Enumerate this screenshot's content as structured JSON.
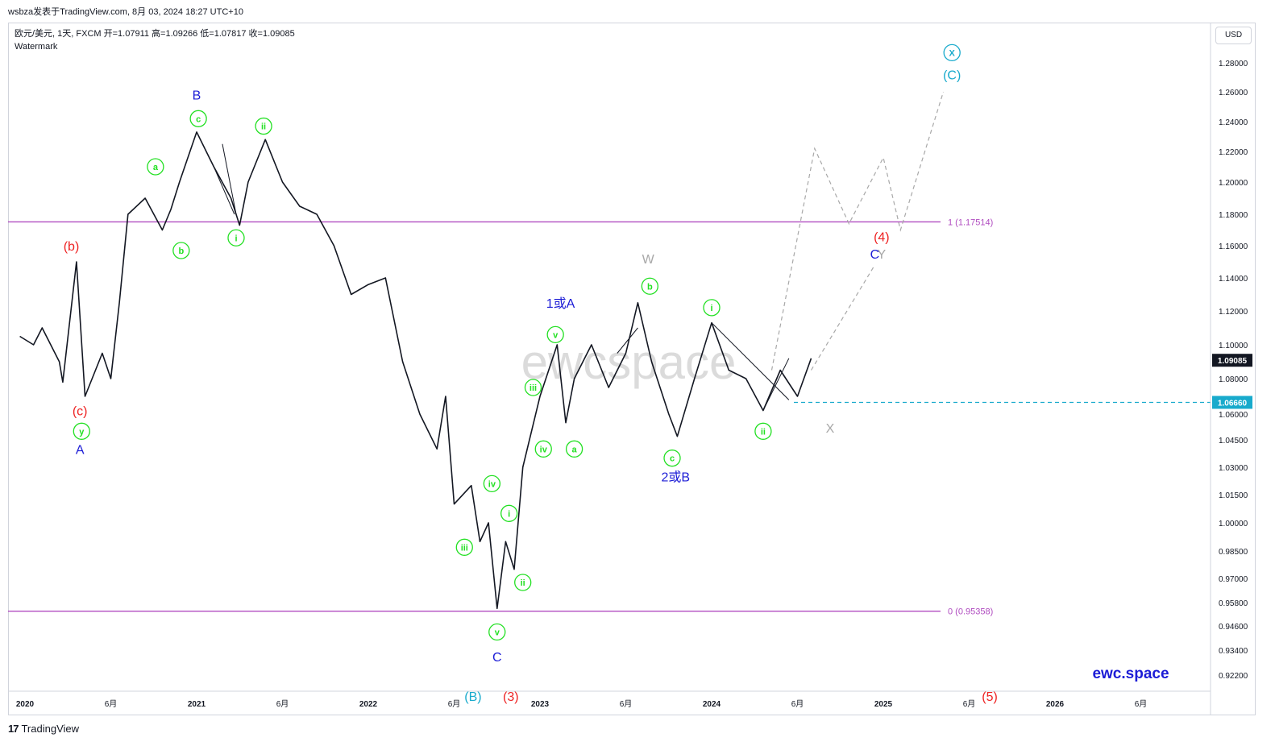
{
  "header": {
    "publish_line": "wsbza发表于TradingView.com,  8月 03, 2024 18:27 UTC+10",
    "symbol_line": "欧元/美元, 1天, FXCM  开=1.07911  高=1.09266  低=1.07817  收=1.09085",
    "watermark_label": "Watermark",
    "currency": "USD",
    "brand": "ewc.space",
    "watermark_text": "ewcspace"
  },
  "footer": {
    "logo": "17",
    "text": "TradingView"
  },
  "colors": {
    "green": "#22e022",
    "blue": "#1c1cd6",
    "red": "#ee2222",
    "cyan": "#18aacc",
    "gray": "#a8a8a8",
    "purple": "#b04cc0",
    "price": "#131722"
  },
  "chart_data": {
    "type": "line",
    "title": "欧元/美元, 1天, FXCM",
    "xlabel": "",
    "ylabel": "",
    "ylim": [
      0.912,
      1.299
    ],
    "x_ticks": [
      "2020",
      "6月",
      "2021",
      "6月",
      "2022",
      "6月",
      "2023",
      "6月",
      "2024",
      "6月",
      "2025",
      "6月",
      "2026",
      "6月"
    ],
    "y_ticks": [
      "1.28000",
      "1.26000",
      "1.24000",
      "1.22000",
      "1.20000",
      "1.18000",
      "1.16000",
      "1.14000",
      "1.12000",
      "1.10000",
      "1.08000",
      "1.06000",
      "1.04500",
      "1.03000",
      "1.01500",
      "1.00000",
      "0.98500",
      "0.97000",
      "0.95800",
      "0.94600",
      "0.93400",
      "0.92200"
    ],
    "last_price": "1.09085",
    "price_series": [
      [
        2019.97,
        1.105
      ],
      [
        2020.05,
        1.1
      ],
      [
        2020.1,
        1.11
      ],
      [
        2020.2,
        1.09
      ],
      [
        2020.22,
        1.078
      ],
      [
        2020.3,
        1.15
      ],
      [
        2020.35,
        1.07
      ],
      [
        2020.45,
        1.095
      ],
      [
        2020.5,
        1.08
      ],
      [
        2020.55,
        1.125
      ],
      [
        2020.6,
        1.18
      ],
      [
        2020.7,
        1.19
      ],
      [
        2020.8,
        1.17
      ],
      [
        2020.85,
        1.183
      ],
      [
        2020.9,
        1.2
      ],
      [
        2021.0,
        1.233
      ],
      [
        2021.1,
        1.21
      ],
      [
        2021.2,
        1.19
      ],
      [
        2021.25,
        1.173
      ],
      [
        2021.3,
        1.2
      ],
      [
        2021.4,
        1.228
      ],
      [
        2021.5,
        1.2
      ],
      [
        2021.6,
        1.185
      ],
      [
        2021.7,
        1.18
      ],
      [
        2021.8,
        1.16
      ],
      [
        2021.9,
        1.13
      ],
      [
        2022.0,
        1.136
      ],
      [
        2022.1,
        1.14
      ],
      [
        2022.2,
        1.09
      ],
      [
        2022.3,
        1.06
      ],
      [
        2022.4,
        1.04
      ],
      [
        2022.45,
        1.07
      ],
      [
        2022.5,
        1.01
      ],
      [
        2022.6,
        1.02
      ],
      [
        2022.65,
        0.99
      ],
      [
        2022.7,
        1.0
      ],
      [
        2022.75,
        0.955
      ],
      [
        2022.8,
        0.99
      ],
      [
        2022.85,
        0.975
      ],
      [
        2022.9,
        1.03
      ],
      [
        2023.0,
        1.07
      ],
      [
        2023.1,
        1.1
      ],
      [
        2023.15,
        1.055
      ],
      [
        2023.2,
        1.08
      ],
      [
        2023.3,
        1.1
      ],
      [
        2023.4,
        1.075
      ],
      [
        2023.5,
        1.095
      ],
      [
        2023.57,
        1.125
      ],
      [
        2023.65,
        1.09
      ],
      [
        2023.75,
        1.06
      ],
      [
        2023.8,
        1.047
      ],
      [
        2023.9,
        1.08
      ],
      [
        2024.0,
        1.113
      ],
      [
        2024.1,
        1.085
      ],
      [
        2024.2,
        1.08
      ],
      [
        2024.3,
        1.062
      ],
      [
        2024.4,
        1.085
      ],
      [
        2024.5,
        1.07
      ],
      [
        2024.58,
        1.092
      ]
    ],
    "projection_paths": [
      {
        "name": "scenario-1",
        "points": [
          [
            2024.35,
            1.085
          ],
          [
            2024.6,
            1.222
          ],
          [
            2024.8,
            1.174
          ],
          [
            2025.0,
            1.216
          ],
          [
            2025.1,
            1.17
          ],
          [
            2025.35,
            1.26
          ]
        ]
      },
      {
        "name": "scenario-2",
        "points": [
          [
            2024.58,
            1.085
          ],
          [
            2024.95,
            1.148
          ]
        ]
      }
    ],
    "levels": [
      {
        "label": "1 (1.17514)",
        "value": 1.17514
      },
      {
        "label": "0 (0.95358)",
        "value": 0.95358
      },
      {
        "label": "1.06660",
        "value": 1.0666
      }
    ],
    "annotations": [
      {
        "text": "(b)",
        "color": "red",
        "t": 2020.27,
        "p": 1.16,
        "circle": false
      },
      {
        "text": "(c)",
        "color": "red",
        "t": 2020.32,
        "p": 1.062,
        "circle": false
      },
      {
        "text": "y",
        "color": "green",
        "t": 2020.33,
        "p": 1.05,
        "circle": true
      },
      {
        "text": "A",
        "color": "blue",
        "t": 2020.32,
        "p": 1.04,
        "circle": false
      },
      {
        "text": "a",
        "color": "green",
        "t": 2020.76,
        "p": 1.21,
        "circle": true
      },
      {
        "text": "b",
        "color": "green",
        "t": 2020.91,
        "p": 1.157,
        "circle": true
      },
      {
        "text": "c",
        "color": "green",
        "t": 2021.01,
        "p": 1.242,
        "circle": true
      },
      {
        "text": "B",
        "color": "blue",
        "t": 2021.0,
        "p": 1.258,
        "circle": false
      },
      {
        "text": "ii",
        "color": "green",
        "t": 2021.39,
        "p": 1.237,
        "circle": true
      },
      {
        "text": "i",
        "color": "green",
        "t": 2021.23,
        "p": 1.165,
        "circle": true
      },
      {
        "text": "iv",
        "color": "green",
        "t": 2022.72,
        "p": 1.021,
        "circle": true
      },
      {
        "text": "i",
        "color": "green",
        "t": 2022.82,
        "p": 1.005,
        "circle": true
      },
      {
        "text": "iii",
        "color": "green",
        "t": 2022.56,
        "p": 0.987,
        "circle": true
      },
      {
        "text": "ii",
        "color": "green",
        "t": 2022.9,
        "p": 0.968,
        "circle": true
      },
      {
        "text": "v",
        "color": "green",
        "t": 2022.75,
        "p": 0.943,
        "circle": true
      },
      {
        "text": "C",
        "color": "blue",
        "t": 2022.75,
        "p": 0.931,
        "circle": false
      },
      {
        "text": "(B)",
        "color": "cyan",
        "t": 2022.61,
        "p": 0.912,
        "circle": false
      },
      {
        "text": "(3)",
        "color": "red",
        "t": 2022.83,
        "p": 0.912,
        "circle": false
      },
      {
        "text": "iii",
        "color": "green",
        "t": 2022.96,
        "p": 1.075,
        "circle": true
      },
      {
        "text": "iv",
        "color": "green",
        "t": 2023.02,
        "p": 1.04,
        "circle": true
      },
      {
        "text": "a",
        "color": "green",
        "t": 2023.2,
        "p": 1.04,
        "circle": true
      },
      {
        "text": "v",
        "color": "green",
        "t": 2023.09,
        "p": 1.106,
        "circle": true
      },
      {
        "text": "1或A",
        "color": "blue",
        "t": 2023.12,
        "p": 1.125,
        "circle": false
      },
      {
        "text": "W",
        "color": "gray",
        "t": 2023.63,
        "p": 1.152,
        "circle": false
      },
      {
        "text": "b",
        "color": "green",
        "t": 2023.64,
        "p": 1.135,
        "circle": true
      },
      {
        "text": "c",
        "color": "green",
        "t": 2023.77,
        "p": 1.035,
        "circle": true
      },
      {
        "text": "2或B",
        "color": "blue",
        "t": 2023.79,
        "p": 1.025,
        "circle": false
      },
      {
        "text": "i",
        "color": "green",
        "t": 2024.0,
        "p": 1.122,
        "circle": true
      },
      {
        "text": "ii",
        "color": "green",
        "t": 2024.3,
        "p": 1.05,
        "circle": true
      },
      {
        "text": "X",
        "color": "gray",
        "t": 2024.69,
        "p": 1.052,
        "circle": false
      },
      {
        "text": "(4)",
        "color": "red",
        "t": 2024.99,
        "p": 1.166,
        "circle": false
      },
      {
        "text": "C",
        "color": "blue",
        "t": 2024.95,
        "p": 1.155,
        "circle": false
      },
      {
        "text": "Y",
        "color": "gray",
        "t": 2024.99,
        "p": 1.155,
        "circle": false
      },
      {
        "text": "X",
        "color": "cyan",
        "t": 2025.4,
        "p": 1.287,
        "circle": true
      },
      {
        "text": "(C)",
        "color": "cyan",
        "t": 2025.4,
        "p": 1.272,
        "circle": false
      },
      {
        "text": "(5)",
        "color": "red",
        "t": 2025.62,
        "p": 0.912,
        "circle": false
      }
    ]
  }
}
